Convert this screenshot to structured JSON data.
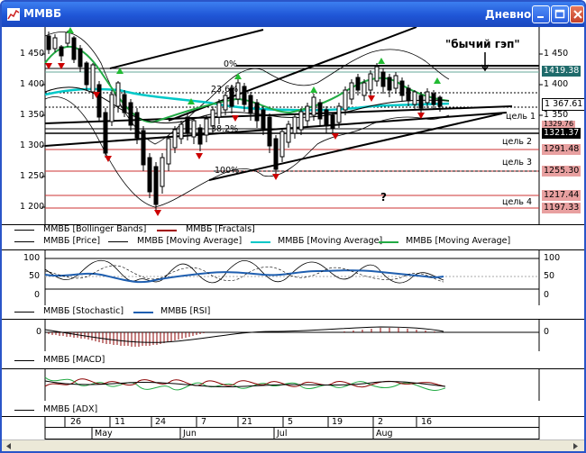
{
  "window": {
    "title": "ММВБ",
    "period": "Дневной"
  },
  "main_chart": {
    "price_axis": {
      "ticks": [
        "1 450",
        "1 400",
        "1 350",
        "1 300",
        "1 250",
        "1 200"
      ]
    },
    "right_ticks": [
      "1 450",
      "1 400",
      "1 350"
    ],
    "price_boxes": [
      "1419.38",
      "1 367.61",
      "1321.37",
      "1329.76",
      "1291.48",
      "1255.30",
      "1217.44",
      "1197.33"
    ],
    "annotations": {
      "gap": "\"бычий гэп\"",
      "target1": "цель 1",
      "target2": "цель 2",
      "target3": "цель 3",
      "target4": "цель 4",
      "question": "?",
      "fib0": "0%",
      "fib236": "23.6%",
      "fib382": "38.2%",
      "fib100": "100%"
    },
    "legend": [
      {
        "label": "ММВБ [Bollinger Bands]",
        "color": "#000000"
      },
      {
        "label": "ММВБ [Fractals]",
        "color": "#a00000"
      },
      {
        "label": "ММВБ [Price]",
        "color": "#000000"
      },
      {
        "label": "ММВБ [Moving Average]",
        "color": "#000000"
      },
      {
        "label": "ММВБ [Moving Average]",
        "color": "#00c8c8"
      },
      {
        "label": "ММВБ [Moving Average]",
        "color": "#22aa44"
      }
    ]
  },
  "osc_panel": {
    "ticks_left": [
      "100",
      "50",
      "0"
    ],
    "ticks_right": [
      "100",
      "50",
      "0"
    ],
    "legend": [
      {
        "label": "ММВБ [Stochastic]",
        "color": "#000000"
      },
      {
        "label": "ММВБ [RSI]",
        "color": "#1f5fb0"
      }
    ]
  },
  "macd_panel": {
    "tick_left": "0",
    "tick_right": "0",
    "legend": [
      {
        "label": "ММВБ [MACD]",
        "color": "#000000"
      }
    ]
  },
  "adx_panel": {
    "legend": [
      {
        "label": "ММВБ [ADX]",
        "color": "#000000"
      }
    ]
  },
  "time_axis": {
    "days": [
      "26",
      "11",
      "24",
      "7",
      "21",
      "5",
      "19",
      "2",
      "16"
    ],
    "months": [
      "May",
      "Jun",
      "Jul",
      "Aug"
    ]
  },
  "colors": {
    "titlebar": "#1f55d6",
    "bollinger": "#000000",
    "fractal_up": "#22bb33",
    "fractal_down": "#cc0000",
    "ma_cyan": "#00c8c8",
    "ma_green": "#22aa44",
    "rsi": "#1f5fb0"
  }
}
